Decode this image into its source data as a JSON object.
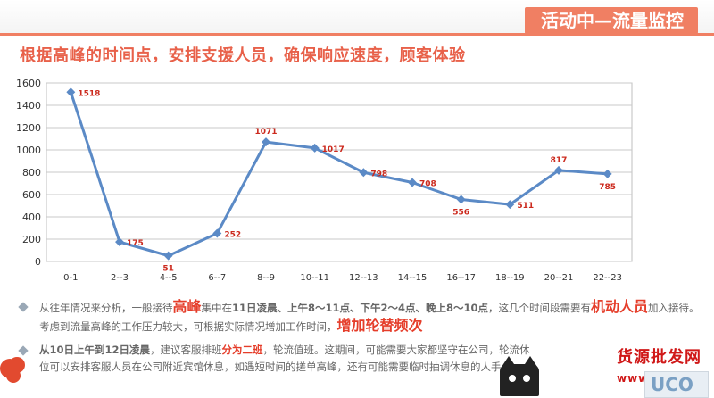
{
  "banner": {
    "title": "活动中—流量监控",
    "color": "#f07f63"
  },
  "headline": "根据高峰的时间点，安排支援人员，确保响应速度，顾客体验",
  "chart_data": {
    "type": "line",
    "title": "",
    "xlabel": "",
    "ylabel": "",
    "categories": [
      "0-1",
      "2--3",
      "4--5",
      "6--7",
      "8--9",
      "10--11",
      "12--13",
      "14--15",
      "16--17",
      "18--19",
      "20--21",
      "22--23"
    ],
    "series": [
      {
        "values": [
          1518,
          175,
          51,
          252,
          1071,
          1017,
          798,
          708,
          556,
          511,
          817,
          785
        ],
        "color": "#5b8ac6"
      }
    ],
    "data_labels": [
      "1518",
      "175",
      "51",
      "252",
      "1071",
      "1017",
      "798",
      "708",
      "556",
      "511",
      "817",
      "785"
    ],
    "label_placement": [
      "right",
      "right",
      "below",
      "right",
      "above",
      "right",
      "right",
      "right",
      "below",
      "right",
      "above",
      "below"
    ],
    "yticks": [
      "0",
      "200",
      "400",
      "600",
      "800",
      "1000",
      "1200",
      "1400",
      "1600"
    ],
    "ylim": [
      0,
      1600
    ],
    "grid": true,
    "label_color": "#cc2a1e"
  },
  "notes": {
    "note1": {
      "p1": "从往年情况来分析，一般接待",
      "p2": "高峰",
      "p3": "集中在",
      "p4": "11日凌晨、上午8～11点、下午2～4点、晚上8～10点",
      "p5": "，这几个时间段需要有",
      "p6": "机动人员",
      "p7": "加入接待。考虑到流量高峰的工作压力较大，可根据实际情况增加工作时间，",
      "p8": "增加轮替频次"
    },
    "note2": {
      "p1": "从10日上午到12日凌晨",
      "p2": "，建议客服排班",
      "p3": "分为二班",
      "p4": "，轮流值班。这期间，可能需要大家都坚守在公司，轮流休",
      "p5": "位可以安排客服人员在公司附近宾馆休息，如遇短时间的搓单高峰，还有可能需要临时抽调休息的人手"
    }
  },
  "watermark": {
    "text": "货源批发网",
    "url": "www.6pf.cn"
  },
  "logo": {
    "text": "UCO"
  },
  "icons": {
    "bullet": "diamond-bullet-icon",
    "cat": "cat-logo-icon",
    "flower": "flower-icon"
  }
}
